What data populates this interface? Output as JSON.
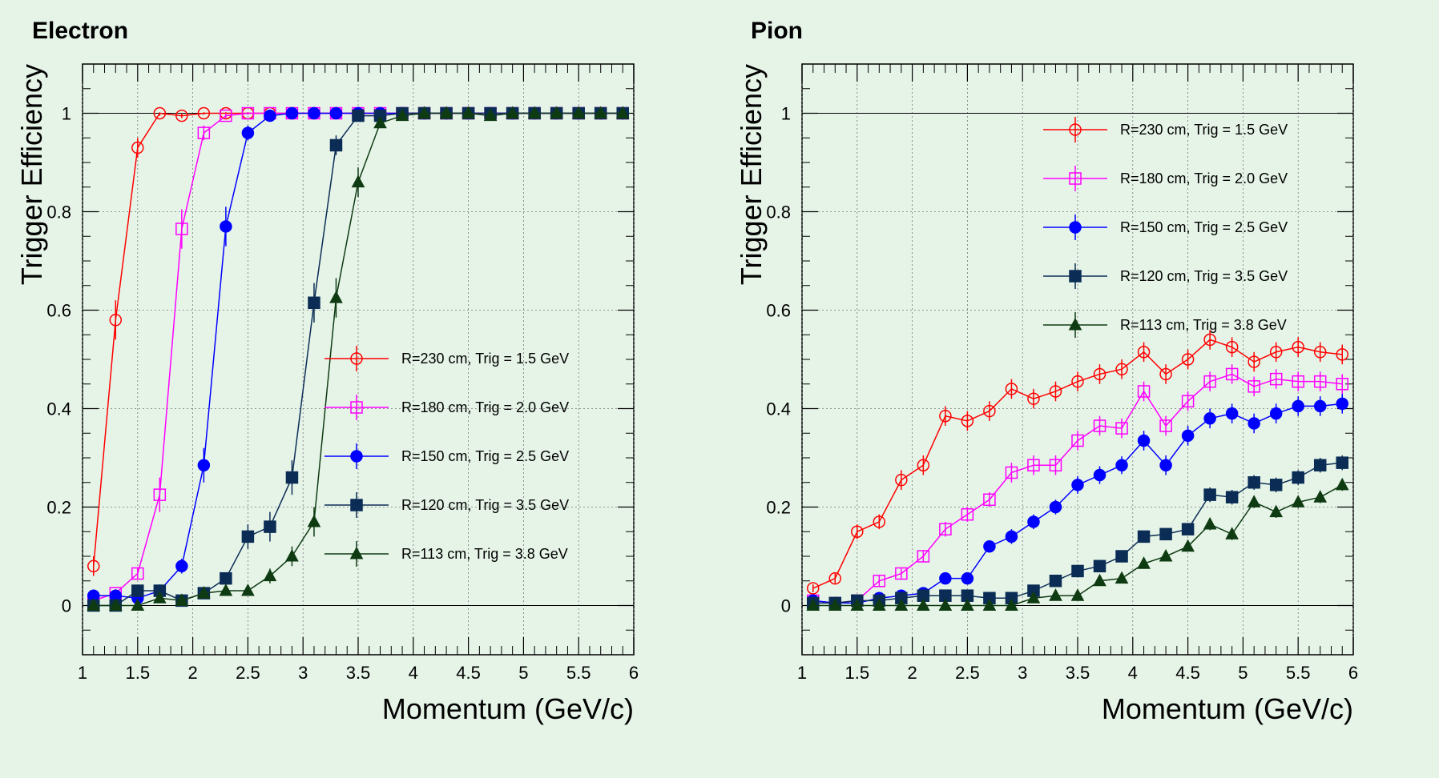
{
  "chart_data": [
    {
      "type": "line",
      "title": "Electron",
      "xlabel": "Momentum (GeV/c)",
      "ylabel": "Trigger Efficiency",
      "xlim": [
        1,
        6
      ],
      "ylim": [
        -0.1,
        1.1
      ],
      "xticks": [
        "1",
        "1.5",
        "2",
        "2.5",
        "3",
        "3.5",
        "4",
        "4.5",
        "5",
        "5.5",
        "6"
      ],
      "yticks": [
        "0",
        "0.2",
        "0.4",
        "0.6",
        "0.8",
        "1"
      ],
      "grid": true,
      "legend_position": "center-right",
      "x": [
        1.1,
        1.3,
        1.5,
        1.7,
        1.9,
        2.1,
        2.3,
        2.5,
        2.7,
        2.9,
        3.1,
        3.3,
        3.5,
        3.7,
        3.9,
        4.1,
        4.3,
        4.5,
        4.7,
        4.9,
        5.1,
        5.3,
        5.5,
        5.7,
        5.9
      ],
      "series": [
        {
          "name": "R=230 cm, Trig = 1.5 GeV",
          "color": "#ff0000",
          "marker": "open-circle",
          "values": [
            0.08,
            0.58,
            0.93,
            1.0,
            0.995,
            1.0,
            1.0,
            1.0,
            1.0,
            1.0,
            1.0,
            1.0,
            1.0,
            1.0,
            1.0,
            1.0,
            1.0,
            1.0,
            1.0,
            1.0,
            1.0,
            1.0,
            1.0,
            1.0,
            1.0
          ],
          "errors": [
            0.02,
            0.04,
            0.02,
            0.005,
            0.005,
            0.003,
            0.003,
            0.003,
            0.002,
            0.002,
            0.002,
            0.002,
            0.002,
            0.002,
            0.002,
            0.002,
            0.002,
            0.002,
            0.002,
            0.002,
            0.002,
            0.002,
            0.002,
            0.002,
            0.002
          ]
        },
        {
          "name": "R=180 cm, Trig = 2.0 GeV",
          "color": "#ff00ff",
          "marker": "open-square",
          "values": [
            0.01,
            0.025,
            0.065,
            0.225,
            0.765,
            0.96,
            0.995,
            1.0,
            1.0,
            1.0,
            1.0,
            1.0,
            1.0,
            1.0,
            1.0,
            1.0,
            1.0,
            1.0,
            1.0,
            1.0,
            1.0,
            1.0,
            1.0,
            1.0,
            1.0
          ],
          "errors": [
            0.005,
            0.008,
            0.012,
            0.035,
            0.04,
            0.015,
            0.005,
            0.003,
            0.002,
            0.002,
            0.002,
            0.002,
            0.002,
            0.002,
            0.002,
            0.002,
            0.002,
            0.002,
            0.002,
            0.002,
            0.002,
            0.002,
            0.002,
            0.002,
            0.002
          ]
        },
        {
          "name": "R=150 cm, Trig = 2.5 GeV",
          "color": "#0000ff",
          "marker": "filled-circle",
          "values": [
            0.02,
            0.02,
            0.015,
            0.03,
            0.08,
            0.285,
            0.77,
            0.96,
            0.995,
            1.0,
            1.0,
            1.0,
            1.0,
            1.0,
            1.0,
            1.0,
            1.0,
            1.0,
            1.0,
            1.0,
            1.0,
            1.0,
            1.0,
            1.0,
            1.0
          ],
          "errors": [
            0.005,
            0.005,
            0.005,
            0.008,
            0.015,
            0.035,
            0.04,
            0.015,
            0.005,
            0.003,
            0.002,
            0.002,
            0.002,
            0.002,
            0.002,
            0.002,
            0.002,
            0.002,
            0.002,
            0.002,
            0.002,
            0.002,
            0.002,
            0.002,
            0.002
          ]
        },
        {
          "name": "R=120 cm, Trig = 3.5 GeV",
          "color": "#0b2d55",
          "marker": "filled-square",
          "values": [
            0.0,
            0.0,
            0.03,
            0.03,
            0.01,
            0.025,
            0.055,
            0.14,
            0.16,
            0.26,
            0.615,
            0.935,
            0.995,
            0.995,
            1.0,
            1.0,
            1.0,
            1.0,
            1.0,
            1.0,
            1.0,
            1.0,
            1.0,
            1.0,
            1.0
          ],
          "errors": [
            0.005,
            0.005,
            0.01,
            0.01,
            0.008,
            0.008,
            0.012,
            0.025,
            0.03,
            0.035,
            0.04,
            0.02,
            0.005,
            0.005,
            0.003,
            0.002,
            0.002,
            0.002,
            0.002,
            0.002,
            0.002,
            0.002,
            0.002,
            0.002,
            0.002
          ]
        },
        {
          "name": "R=113 cm, Trig = 3.8 GeV",
          "color": "#0f3b12",
          "marker": "filled-triangle",
          "values": [
            0.0,
            0.0,
            0.0,
            0.015,
            0.01,
            0.025,
            0.03,
            0.03,
            0.06,
            0.1,
            0.17,
            0.625,
            0.86,
            0.98,
            0.995,
            1.0,
            1.0,
            1.0,
            0.995,
            1.0,
            1.0,
            1.0,
            1.0,
            1.0,
            1.0
          ],
          "errors": [
            0.005,
            0.005,
            0.005,
            0.008,
            0.008,
            0.008,
            0.01,
            0.01,
            0.015,
            0.02,
            0.03,
            0.04,
            0.03,
            0.01,
            0.005,
            0.003,
            0.002,
            0.002,
            0.004,
            0.002,
            0.002,
            0.002,
            0.002,
            0.002,
            0.002
          ]
        }
      ]
    },
    {
      "type": "line",
      "title": "Pion",
      "xlabel": "Momentum (GeV/c)",
      "ylabel": "Trigger Efficiency",
      "xlim": [
        1,
        6
      ],
      "ylim": [
        -0.1,
        1.1
      ],
      "xticks": [
        "1",
        "1.5",
        "2",
        "2.5",
        "3",
        "3.5",
        "4",
        "4.5",
        "5",
        "5.5",
        "6"
      ],
      "yticks": [
        "0",
        "0.2",
        "0.4",
        "0.6",
        "0.8",
        "1"
      ],
      "grid": true,
      "legend_position": "top-right",
      "x": [
        1.1,
        1.3,
        1.5,
        1.7,
        1.9,
        2.1,
        2.3,
        2.5,
        2.7,
        2.9,
        3.1,
        3.3,
        3.5,
        3.7,
        3.9,
        4.1,
        4.3,
        4.5,
        4.7,
        4.9,
        5.1,
        5.3,
        5.5,
        5.7,
        5.9
      ],
      "series": [
        {
          "name": "R=230 cm, Trig = 1.5 GeV",
          "color": "#ff0000",
          "marker": "open-circle",
          "values": [
            0.035,
            0.055,
            0.15,
            0.17,
            0.255,
            0.285,
            0.385,
            0.375,
            0.395,
            0.44,
            0.42,
            0.435,
            0.455,
            0.47,
            0.48,
            0.515,
            0.47,
            0.5,
            0.54,
            0.525,
            0.495,
            0.515,
            0.525,
            0.515,
            0.51
          ],
          "errors": [
            0.008,
            0.01,
            0.015,
            0.015,
            0.02,
            0.02,
            0.02,
            0.02,
            0.02,
            0.02,
            0.02,
            0.02,
            0.02,
            0.02,
            0.02,
            0.02,
            0.02,
            0.02,
            0.02,
            0.02,
            0.02,
            0.02,
            0.02,
            0.02,
            0.02
          ]
        },
        {
          "name": "R=180 cm, Trig = 2.0 GeV",
          "color": "#ff00ff",
          "marker": "open-square",
          "values": [
            0.01,
            0.005,
            0.01,
            0.05,
            0.065,
            0.1,
            0.155,
            0.185,
            0.215,
            0.27,
            0.285,
            0.285,
            0.335,
            0.365,
            0.36,
            0.435,
            0.365,
            0.415,
            0.455,
            0.47,
            0.445,
            0.46,
            0.455,
            0.455,
            0.45
          ],
          "errors": [
            0.005,
            0.005,
            0.005,
            0.01,
            0.01,
            0.012,
            0.015,
            0.015,
            0.015,
            0.02,
            0.02,
            0.02,
            0.02,
            0.02,
            0.02,
            0.02,
            0.02,
            0.02,
            0.02,
            0.02,
            0.02,
            0.02,
            0.02,
            0.02,
            0.02
          ]
        },
        {
          "name": "R=150 cm, Trig = 2.5 GeV",
          "color": "#0000ff",
          "marker": "filled-circle",
          "values": [
            0.01,
            0.005,
            0.005,
            0.015,
            0.02,
            0.025,
            0.055,
            0.055,
            0.12,
            0.14,
            0.17,
            0.2,
            0.245,
            0.265,
            0.285,
            0.335,
            0.285,
            0.345,
            0.38,
            0.39,
            0.37,
            0.39,
            0.405,
            0.405,
            0.41
          ],
          "errors": [
            0.005,
            0.005,
            0.005,
            0.005,
            0.008,
            0.008,
            0.01,
            0.01,
            0.012,
            0.015,
            0.015,
            0.015,
            0.018,
            0.018,
            0.018,
            0.02,
            0.02,
            0.02,
            0.02,
            0.02,
            0.02,
            0.02,
            0.02,
            0.02,
            0.02
          ]
        },
        {
          "name": "R=120 cm, Trig = 3.5 GeV",
          "color": "#0b2d55",
          "marker": "filled-square",
          "values": [
            0.005,
            0.005,
            0.01,
            0.01,
            0.015,
            0.02,
            0.02,
            0.02,
            0.015,
            0.015,
            0.03,
            0.05,
            0.07,
            0.08,
            0.1,
            0.14,
            0.145,
            0.155,
            0.225,
            0.22,
            0.25,
            0.245,
            0.26,
            0.285,
            0.29
          ],
          "errors": [
            0.005,
            0.005,
            0.005,
            0.005,
            0.005,
            0.005,
            0.005,
            0.005,
            0.005,
            0.005,
            0.008,
            0.008,
            0.01,
            0.01,
            0.012,
            0.012,
            0.012,
            0.012,
            0.015,
            0.015,
            0.015,
            0.015,
            0.015,
            0.015,
            0.015
          ]
        },
        {
          "name": "R=113 cm, Trig = 3.8 GeV",
          "color": "#0f3b12",
          "marker": "filled-triangle",
          "values": [
            0.0,
            0.0,
            0.0,
            0.0,
            0.0,
            0.0,
            0.0,
            0.0,
            0.0,
            0.0,
            0.015,
            0.02,
            0.02,
            0.05,
            0.055,
            0.085,
            0.1,
            0.12,
            0.165,
            0.145,
            0.21,
            0.19,
            0.21,
            0.22,
            0.245
          ],
          "errors": [
            0.003,
            0.003,
            0.003,
            0.003,
            0.003,
            0.003,
            0.003,
            0.003,
            0.003,
            0.003,
            0.005,
            0.005,
            0.006,
            0.008,
            0.008,
            0.01,
            0.01,
            0.01,
            0.012,
            0.012,
            0.012,
            0.012,
            0.012,
            0.012,
            0.012
          ]
        }
      ]
    }
  ]
}
